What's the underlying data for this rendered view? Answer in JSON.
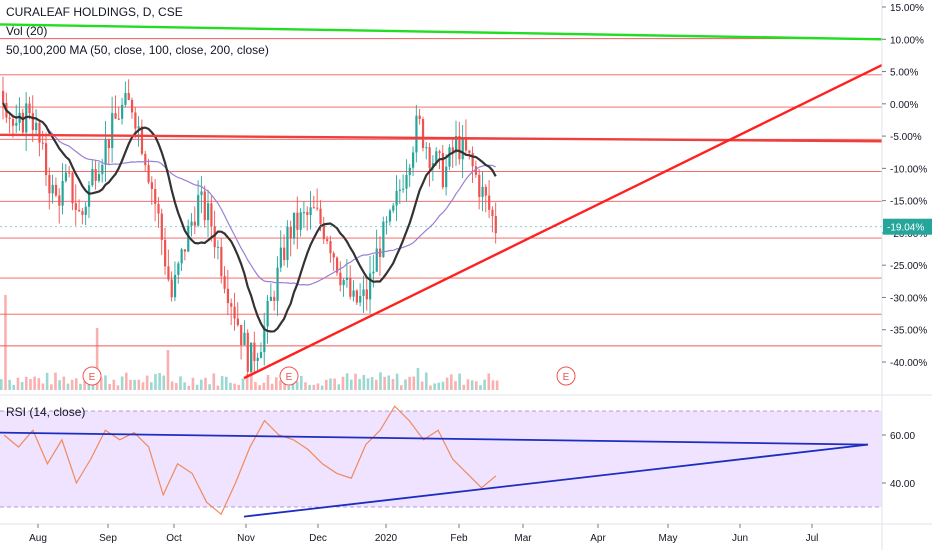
{
  "legend": {
    "title": "CURALEAF HOLDINGS, D, CSE",
    "volume": "Vol (20)",
    "ma": "50,100,200 MA (50, close, 100, close, 200, close)",
    "rsi": "RSI (14, close)"
  },
  "colors": {
    "up": "#26a69a",
    "down": "#ef5350",
    "ma50": "#333333",
    "ma100": "#9b7fd6",
    "resistance": "#ef3e3e",
    "support_trend": "#ff2020",
    "top_green": "#22dd22",
    "rsi_line": "#f08a5d",
    "rsi_band": "#efe3ff",
    "rsi_trend": "#1c2dbf",
    "last_price_badge": "#26a69a"
  },
  "chart_data": [
    {
      "type": "candlestick",
      "name": "CURALEAF HOLDINGS, D, CSE",
      "scale": "percent",
      "y_ticks": [
        "15.00%",
        "10.00%",
        "5.00%",
        "0.00%",
        "-5.00%",
        "-10.00%",
        "-15.00%",
        "-20.00%",
        "-25.00%",
        "-30.00%",
        "-35.00%",
        "-40.00%"
      ],
      "x_ticks": [
        "Aug",
        "Sep",
        "Oct",
        "Nov",
        "Dec",
        "2020",
        "Feb",
        "Mar",
        "Apr",
        "May",
        "Jun",
        "Jul"
      ],
      "last_value_label": "-19.04%",
      "earnings_markers": [
        "E",
        "E",
        "E"
      ],
      "horizontal_levels_pct": [
        -37.5,
        -32.6,
        -27.0,
        -20.8,
        -15.1,
        -10.5,
        -5.5,
        -0.5,
        4.5,
        10.1
      ],
      "trendlines": [
        {
          "name": "resistance",
          "from_pct": -4.8,
          "to_pct": -5.8
        },
        {
          "name": "support",
          "from_pct": -42.5,
          "to_pct": 6.0
        },
        {
          "name": "top",
          "from_pct": 12.3,
          "to_pct": 10.0
        }
      ],
      "close_path_pct": [
        2,
        -5,
        0,
        -8,
        -15,
        -12,
        -18,
        -10,
        -6,
        -1,
        0,
        -8,
        -18,
        -30,
        -22,
        -15,
        -18,
        -26,
        -33,
        -40,
        -36,
        -28,
        -20,
        -18,
        -17,
        -20,
        -26,
        -31,
        -30,
        -22,
        -18,
        -10,
        -3,
        -8,
        -11,
        -6,
        -9,
        -14,
        -19
      ]
    },
    {
      "type": "line",
      "name": "RSI (14, close)",
      "y_ticks": [
        "60.00",
        "40.00"
      ],
      "band": [
        30,
        70
      ],
      "values": [
        60,
        55,
        62,
        48,
        58,
        40,
        50,
        62,
        58,
        61,
        55,
        35,
        48,
        44,
        32,
        27,
        40,
        55,
        66,
        60,
        58,
        54,
        48,
        44,
        42,
        56,
        62,
        72,
        66,
        58,
        62,
        50,
        44,
        38,
        43
      ],
      "trendlines": [
        {
          "from": 61,
          "to": 56
        },
        {
          "from": 26,
          "to": 56
        }
      ]
    }
  ]
}
